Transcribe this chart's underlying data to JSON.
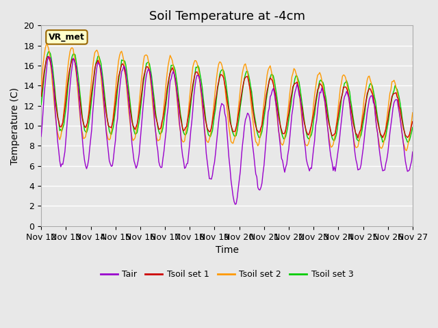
{
  "title": "Soil Temperature at -4cm",
  "xlabel": "Time",
  "ylabel": "Temperature (C)",
  "ylim": [
    0,
    20
  ],
  "xlim": [
    0,
    360
  ],
  "xtick_labels": [
    "Nov 12",
    "Nov 13",
    "Nov 14",
    "Nov 15",
    "Nov 16",
    "Nov 17",
    "Nov 18",
    "Nov 19",
    "Nov 20",
    "Nov 21",
    "Nov 22",
    "Nov 23",
    "Nov 24",
    "Nov 25",
    "Nov 26",
    "Nov 27"
  ],
  "ytick_labels": [
    "0",
    "2",
    "4",
    "6",
    "8",
    "10",
    "12",
    "14",
    "16",
    "18",
    "20"
  ],
  "colors": {
    "Tair": "#9900cc",
    "Tsoil_set1": "#cc0000",
    "Tsoil_set2": "#ff9900",
    "Tsoil_set3": "#00cc00"
  },
  "legend_labels": [
    "Tair",
    "Tsoil set 1",
    "Tsoil set 2",
    "Tsoil set 3"
  ],
  "annotation_text": "VR_met",
  "annotation_bg": "#ffffcc",
  "annotation_border": "#996600",
  "bg_color": "#e8e8e8",
  "plot_bg_color": "#e8e8e8",
  "grid_color": "#ffffff",
  "title_fontsize": 13,
  "axis_fontsize": 10,
  "tick_fontsize": 9,
  "n_points": 361,
  "days": 15,
  "amp_tair_start": 5.5,
  "amp_tair_end": 3.5,
  "amp_soil_start": 3.5,
  "amp_soil_end": 2.2,
  "phase_soil1": 0.3,
  "phase_soil2": 0.6,
  "phase_soil3": 0.1
}
